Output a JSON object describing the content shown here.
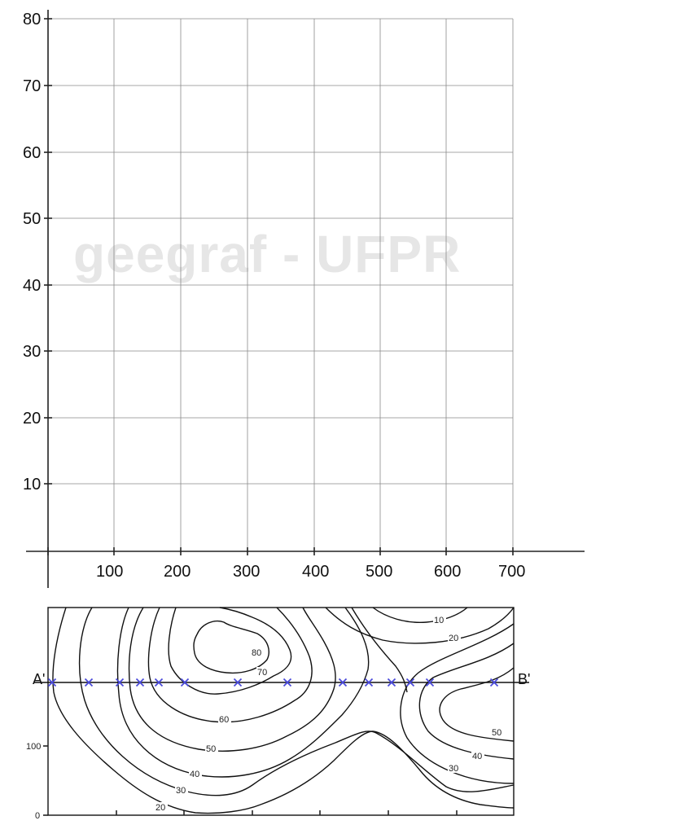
{
  "watermark": "geegraf - UFPR",
  "profile_graph": {
    "y_ticks": [
      "80",
      "70",
      "60",
      "50",
      "40",
      "30",
      "20",
      "10"
    ],
    "x_ticks": [
      "100",
      "200",
      "300",
      "400",
      "500",
      "600",
      "700"
    ]
  },
  "contour_map": {
    "endpoint_left": "A'",
    "endpoint_right": "B'",
    "left_axis_labels": [
      "100",
      "0"
    ],
    "contour_labels": [
      "10",
      "20",
      "80",
      "70",
      "60",
      "50",
      "40",
      "30",
      "20",
      "50",
      "40",
      "30"
    ],
    "marker_color": "#4a4adb",
    "marker_count": 13
  }
}
